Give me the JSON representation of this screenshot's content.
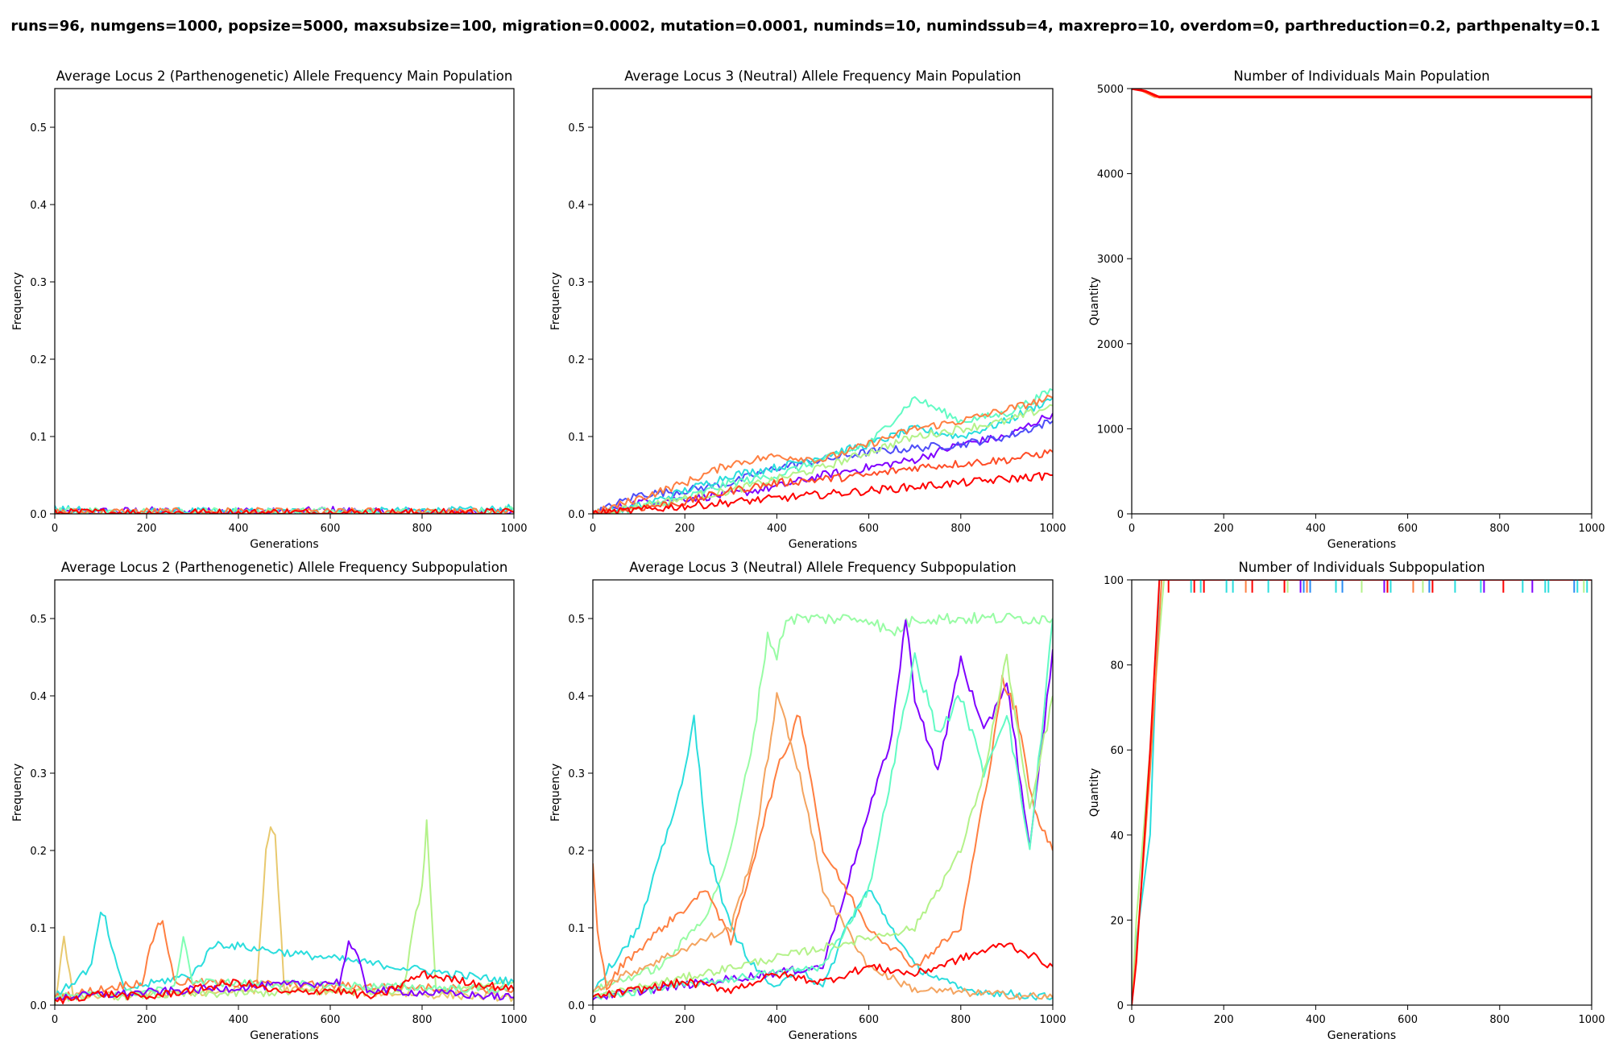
{
  "suptitle": "runs=96, numgens=1000, popsize=5000, maxsubsize=100, migration=0.0002, mutation=0.0001, numinds=10, numindssub=4, maxrepro=10, overdom=0, parthreduction=0.2, parthpenalty=0.1",
  "chart_data": [
    {
      "type": "line",
      "title": "Average Locus 2 (Parthenogenetic) Allele Frequency Main Population",
      "xlabel": "Generations",
      "ylabel": "Frequency",
      "xlim": [
        0,
        1000
      ],
      "ylim": [
        0,
        0.55
      ],
      "xticks": [
        0,
        200,
        400,
        600,
        800,
        1000
      ],
      "yticks": [
        0.0,
        0.1,
        0.2,
        0.3,
        0.4,
        0.5
      ],
      "colormap": "rainbow",
      "runs": 96,
      "series": [
        {
          "color": "#8000ff",
          "x": [
            0,
            100,
            200,
            300,
            400,
            500,
            600,
            700,
            800,
            900,
            1000
          ],
          "values": [
            0.002,
            0.003,
            0.004,
            0.002,
            0.004,
            0.002,
            0.005,
            0.002,
            0.003,
            0.002,
            0.003
          ]
        },
        {
          "color": "#2adddd",
          "x": [
            0,
            100,
            200,
            300,
            400,
            500,
            600,
            700,
            800,
            900,
            1000
          ],
          "values": [
            0.006,
            0.003,
            0.002,
            0.003,
            0.002,
            0.003,
            0.002,
            0.003,
            0.004,
            0.004,
            0.007
          ]
        },
        {
          "color": "#80ffb4",
          "x": [
            0,
            100,
            200,
            300,
            400,
            500,
            600,
            700,
            800,
            900,
            1000
          ],
          "values": [
            0.003,
            0.004,
            0.002,
            0.003,
            0.003,
            0.002,
            0.003,
            0.002,
            0.002,
            0.003,
            0.005
          ]
        },
        {
          "color": "#ff7f41",
          "x": [
            0,
            100,
            200,
            300,
            400,
            500,
            600,
            700,
            800,
            900,
            1000
          ],
          "values": [
            0.002,
            0.002,
            0.003,
            0.002,
            0.003,
            0.002,
            0.002,
            0.003,
            0.002,
            0.002,
            0.003
          ]
        },
        {
          "color": "#ff0000",
          "x": [
            0,
            100,
            200,
            300,
            400,
            500,
            600,
            700,
            800,
            900,
            1000
          ],
          "values": [
            0.001,
            0.002,
            0.001,
            0.002,
            0.001,
            0.002,
            0.001,
            0.002,
            0.001,
            0.002,
            0.002
          ]
        }
      ]
    },
    {
      "type": "line",
      "title": "Average Locus 3 (Neutral) Allele Frequency Main Population",
      "xlabel": "Generations",
      "ylabel": "Frequency",
      "xlim": [
        0,
        1000
      ],
      "ylim": [
        0,
        0.55
      ],
      "xticks": [
        0,
        200,
        400,
        600,
        800,
        1000
      ],
      "yticks": [
        0.0,
        0.1,
        0.2,
        0.3,
        0.4,
        0.5
      ],
      "colormap": "rainbow",
      "runs": 96,
      "series": [
        {
          "color": "#8000ff",
          "x": [
            0,
            100,
            200,
            300,
            400,
            500,
            600,
            700,
            800,
            900,
            1000
          ],
          "values": [
            0,
            0.015,
            0.02,
            0.025,
            0.035,
            0.05,
            0.06,
            0.07,
            0.09,
            0.1,
            0.13
          ]
        },
        {
          "color": "#4e4df8",
          "x": [
            0,
            100,
            200,
            300,
            400,
            500,
            600,
            700,
            800,
            900,
            1000
          ],
          "values": [
            0,
            0.025,
            0.03,
            0.04,
            0.06,
            0.07,
            0.08,
            0.085,
            0.09,
            0.1,
            0.12
          ]
        },
        {
          "color": "#2adddd",
          "x": [
            0,
            100,
            200,
            300,
            400,
            500,
            600,
            700,
            800,
            900,
            1000
          ],
          "values": [
            0,
            0.01,
            0.03,
            0.05,
            0.06,
            0.075,
            0.09,
            0.11,
            0.1,
            0.12,
            0.15
          ]
        },
        {
          "color": "#62fbc4",
          "x": [
            0,
            100,
            200,
            300,
            400,
            500,
            600,
            700,
            800,
            900,
            1000
          ],
          "values": [
            0,
            0.008,
            0.02,
            0.04,
            0.05,
            0.07,
            0.09,
            0.15,
            0.12,
            0.13,
            0.16
          ]
        },
        {
          "color": "#b4f28a",
          "x": [
            0,
            100,
            200,
            300,
            400,
            500,
            600,
            700,
            800,
            900,
            1000
          ],
          "values": [
            0,
            0.01,
            0.02,
            0.03,
            0.045,
            0.06,
            0.08,
            0.1,
            0.11,
            0.12,
            0.14
          ]
        },
        {
          "color": "#ff7f41",
          "x": [
            0,
            100,
            200,
            300,
            400,
            500,
            600,
            700,
            800,
            900,
            1000
          ],
          "values": [
            0,
            0.02,
            0.04,
            0.065,
            0.075,
            0.07,
            0.09,
            0.11,
            0.12,
            0.135,
            0.15
          ]
        },
        {
          "color": "#ff4d27",
          "x": [
            0,
            100,
            200,
            300,
            400,
            500,
            600,
            700,
            800,
            900,
            1000
          ],
          "values": [
            0,
            0.008,
            0.015,
            0.03,
            0.04,
            0.045,
            0.05,
            0.06,
            0.065,
            0.07,
            0.08
          ]
        },
        {
          "color": "#ff0000",
          "x": [
            0,
            100,
            200,
            300,
            400,
            500,
            600,
            700,
            800,
            900,
            1000
          ],
          "values": [
            0,
            0.005,
            0.01,
            0.015,
            0.02,
            0.025,
            0.03,
            0.035,
            0.04,
            0.045,
            0.05
          ]
        }
      ]
    },
    {
      "type": "line",
      "title": "Number of Individuals Main Population",
      "xlabel": "Generations",
      "ylabel": "Quantity",
      "xlim": [
        0,
        1000
      ],
      "ylim": [
        0,
        5000
      ],
      "xticks": [
        0,
        200,
        400,
        600,
        800,
        1000
      ],
      "yticks": [
        0,
        1000,
        2000,
        3000,
        4000,
        5000
      ],
      "colormap": "rainbow",
      "runs": 96,
      "series": [
        {
          "color": "#ff7f41",
          "x": [
            0,
            20,
            50,
            1000
          ],
          "values": [
            5000,
            4985,
            4905,
            4905
          ]
        },
        {
          "color": "#ff0000",
          "x": [
            0,
            30,
            60,
            1000
          ],
          "values": [
            5000,
            4970,
            4900,
            4900
          ]
        }
      ]
    },
    {
      "type": "line",
      "title": "Average Locus 2 (Parthenogenetic) Allele Frequency Subpopulation",
      "xlabel": "Generations",
      "ylabel": "Frequency",
      "xlim": [
        0,
        1000
      ],
      "ylim": [
        0,
        0.55
      ],
      "xticks": [
        0,
        200,
        400,
        600,
        800,
        1000
      ],
      "yticks": [
        0.0,
        0.1,
        0.2,
        0.3,
        0.4,
        0.5
      ],
      "colormap": "rainbow",
      "runs": 96,
      "series": [
        {
          "color": "#e8c96e",
          "x": [
            0,
            20,
            40,
            440,
            460,
            470,
            480,
            500,
            1000
          ],
          "values": [
            0,
            0.09,
            0.01,
            0.02,
            0.2,
            0.23,
            0.22,
            0.02,
            0.01
          ]
        },
        {
          "color": "#b4f28a",
          "x": [
            0,
            760,
            780,
            800,
            810,
            830,
            1000
          ],
          "values": [
            0.01,
            0.02,
            0.1,
            0.15,
            0.24,
            0.02,
            0.03
          ]
        },
        {
          "color": "#2adddd",
          "x": [
            0,
            80,
            100,
            110,
            130,
            150,
            300,
            350,
            1000
          ],
          "values": [
            0.01,
            0.05,
            0.12,
            0.11,
            0.06,
            0.02,
            0.04,
            0.08,
            0.03
          ]
        },
        {
          "color": "#ff7f41",
          "x": [
            0,
            190,
            220,
            235,
            260,
            1000
          ],
          "values": [
            0.01,
            0.03,
            0.1,
            0.11,
            0.03,
            0.02
          ]
        },
        {
          "color": "#80ffb4",
          "x": [
            0,
            260,
            280,
            300,
            1000
          ],
          "values": [
            0.01,
            0.02,
            0.09,
            0.03,
            0.02
          ]
        },
        {
          "color": "#8000ff",
          "x": [
            0,
            620,
            640,
            660,
            680,
            1000
          ],
          "values": [
            0.01,
            0.03,
            0.08,
            0.06,
            0.02,
            0.01
          ]
        },
        {
          "color": "#ff0000",
          "x": [
            0,
            100,
            200,
            300,
            400,
            500,
            600,
            700,
            800,
            900,
            1000
          ],
          "values": [
            0.005,
            0.015,
            0.01,
            0.02,
            0.03,
            0.015,
            0.02,
            0.01,
            0.04,
            0.03,
            0.02
          ]
        }
      ]
    },
    {
      "type": "line",
      "title": "Average Locus 3 (Neutral) Allele Frequency Subpopulation",
      "xlabel": "Generations",
      "ylabel": "Frequency",
      "xlim": [
        0,
        1000
      ],
      "ylim": [
        0,
        0.55
      ],
      "xticks": [
        0,
        200,
        400,
        600,
        800,
        1000
      ],
      "yticks": [
        0.0,
        0.1,
        0.2,
        0.3,
        0.4,
        0.5
      ],
      "colormap": "rainbow",
      "runs": 96,
      "series": [
        {
          "color": "#98fca4",
          "x": [
            0,
            150,
            250,
            300,
            350,
            380,
            400,
            420,
            450,
            500,
            550,
            600,
            650,
            700,
            800,
            900,
            1000
          ],
          "values": [
            0.02,
            0.05,
            0.12,
            0.2,
            0.35,
            0.48,
            0.45,
            0.5,
            0.5,
            0.5,
            0.5,
            0.5,
            0.48,
            0.5,
            0.5,
            0.5,
            0.5
          ]
        },
        {
          "color": "#2adddd",
          "x": [
            0,
            100,
            150,
            200,
            220,
            250,
            300,
            350,
            400,
            450,
            500,
            550,
            600,
            700,
            800,
            1000
          ],
          "values": [
            0.02,
            0.1,
            0.2,
            0.3,
            0.37,
            0.2,
            0.1,
            0.05,
            0.02,
            0.05,
            0.02,
            0.1,
            0.15,
            0.05,
            0.02,
            0.01
          ]
        },
        {
          "color": "#8000ff",
          "x": [
            0,
            500,
            550,
            600,
            650,
            680,
            700,
            750,
            800,
            850,
            900,
            950,
            1000
          ],
          "values": [
            0.01,
            0.05,
            0.15,
            0.25,
            0.35,
            0.5,
            0.4,
            0.3,
            0.45,
            0.35,
            0.42,
            0.2,
            0.46
          ]
        },
        {
          "color": "#ff7f41",
          "x": [
            0,
            10,
            30,
            60,
            150,
            250,
            300,
            400,
            450,
            500,
            600,
            700,
            800,
            860,
            890,
            920,
            960,
            1000
          ],
          "values": [
            0.18,
            0.1,
            0.02,
            0.05,
            0.1,
            0.15,
            0.08,
            0.3,
            0.38,
            0.2,
            0.1,
            0.05,
            0.1,
            0.3,
            0.42,
            0.38,
            0.25,
            0.2
          ]
        },
        {
          "color": "#f4a460",
          "x": [
            0,
            300,
            350,
            400,
            450,
            500,
            600,
            700,
            1000
          ],
          "values": [
            0.02,
            0.1,
            0.2,
            0.4,
            0.3,
            0.15,
            0.05,
            0.02,
            0.01
          ]
        },
        {
          "color": "#62fbc4",
          "x": [
            0,
            500,
            600,
            650,
            700,
            750,
            800,
            850,
            900,
            950,
            1000
          ],
          "values": [
            0.01,
            0.05,
            0.15,
            0.3,
            0.45,
            0.35,
            0.4,
            0.3,
            0.38,
            0.2,
            0.5
          ]
        },
        {
          "color": "#b4f28a",
          "x": [
            0,
            700,
            800,
            850,
            900,
            950,
            1000
          ],
          "values": [
            0.01,
            0.1,
            0.2,
            0.3,
            0.45,
            0.25,
            0.4
          ]
        },
        {
          "color": "#ff0000",
          "x": [
            0,
            100,
            200,
            300,
            400,
            500,
            600,
            700,
            800,
            900,
            1000
          ],
          "values": [
            0.01,
            0.02,
            0.03,
            0.02,
            0.04,
            0.03,
            0.05,
            0.04,
            0.06,
            0.08,
            0.05
          ]
        }
      ]
    },
    {
      "type": "line",
      "title": "Number of Individuals Subpopulation",
      "xlabel": "Generations",
      "ylabel": "Quantity",
      "xlim": [
        0,
        1000
      ],
      "ylim": [
        0,
        100
      ],
      "xticks": [
        0,
        200,
        400,
        600,
        800,
        1000
      ],
      "yticks": [
        0,
        20,
        40,
        60,
        80,
        100
      ],
      "colormap": "rainbow",
      "runs": 96,
      "series": [
        {
          "color": "#2adddd",
          "x": [
            0,
            10,
            40,
            60,
            1000
          ],
          "values": [
            0,
            15,
            40,
            100,
            100
          ]
        },
        {
          "color": "#b4f28a",
          "x": [
            0,
            10,
            40,
            70,
            1000
          ],
          "values": [
            0,
            20,
            60,
            100,
            100
          ]
        },
        {
          "color": "#ff7f41",
          "x": [
            0,
            10,
            40,
            65,
            1000
          ],
          "values": [
            0,
            12,
            55,
            100,
            100
          ]
        },
        {
          "color": "#ff0000",
          "x": [
            0,
            10,
            40,
            60,
            1000
          ],
          "values": [
            0,
            10,
            60,
            100,
            100
          ]
        }
      ],
      "dips": {
        "color_cycle": [
          "#8000ff",
          "#2a8cf5",
          "#2adddd",
          "#b4f28a",
          "#ff7f41",
          "#ff0000"
        ],
        "value": 97
      }
    }
  ]
}
